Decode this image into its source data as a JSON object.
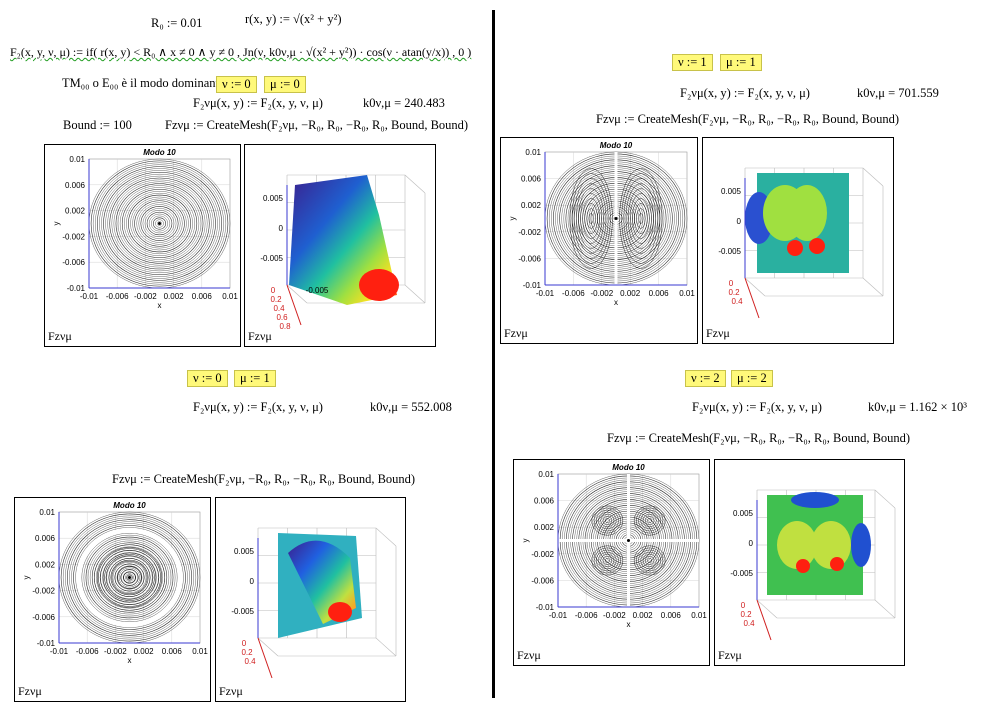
{
  "left": {
    "r0_def": "R₀ := 0.01",
    "r_def": "r(x, y) := √(x² + y²)",
    "fz_def": "F₂(x, y, ν, μ) := if( r(x, y) < R₀ ∧ x ≠ 0 ∧ y ≠ 0 , Jn(ν, k0ν,μ · √(x² + y²)) · cos(ν · atan(y/x)) , 0 )",
    "dominant_text": "TM₀₀ o E₀₀ è il modo dominante",
    "mode1": {
      "nu": "ν := 0",
      "mu": "μ := 0",
      "fz": "F₂νμ(x, y) := F₂(x, y, ν, μ)",
      "k0": "k0ν,μ = 240.483",
      "bound": "Bound := 100",
      "mesh": "Fzνμ := CreateMesh(F₂νμ, −R₀, R₀, −R₀, R₀, Bound, Bound)"
    },
    "mode2": {
      "nu": "ν := 0",
      "mu": "μ := 1",
      "fz": "F₂νμ(x, y) := F₂(x, y, ν, μ)",
      "k0": "k0ν,μ = 552.008",
      "mesh": "Fzνμ := CreateMesh(F₂νμ, −R₀, R₀, −R₀, R₀, Bound, Bound)"
    }
  },
  "right": {
    "mode3": {
      "nu": "ν := 1",
      "mu": "μ := 1",
      "fz": "F₂νμ(x, y) := F₂(x, y, ν, μ)",
      "k0": "k0ν,μ = 701.559",
      "mesh": "Fzνμ := CreateMesh(F₂νμ, −R₀, R₀, −R₀, R₀, Bound, Bound)"
    },
    "mode4": {
      "nu": "ν := 2",
      "mu": "μ := 2",
      "fz": "F₂νμ(x, y) := F₂(x, y, ν, μ)",
      "k0": "k0ν,μ = 1.162 × 10³",
      "mesh": "Fzνμ := CreateMesh(F₂νμ, −R₀, R₀, −R₀, R₀, Bound, Bound)"
    }
  },
  "contour_plot": {
    "title": "Modo 10",
    "y_axis_label": "y",
    "x_axis_label": "x",
    "y_ticks": [
      "0.01",
      "0.006",
      "0.002",
      "-0.002",
      "-0.006",
      "-0.01"
    ],
    "x_ticks": [
      "-0.01",
      "-0.006",
      "-0.002",
      "0.002",
      "0.006",
      "0.01"
    ]
  },
  "surface_plot": {
    "z_ticks": [
      "0.005",
      "0",
      "-0.005"
    ],
    "base_ticks": [
      "0",
      "0.2",
      "0.4",
      "0.6",
      "0.8"
    ],
    "side_tick": "-0.005"
  },
  "frame_label": "Fzνμ",
  "colors": {
    "highlight": "#fff97a",
    "squiggle": "#1c9a1c",
    "axis": "#3a3ad0",
    "base": "#d02020"
  }
}
